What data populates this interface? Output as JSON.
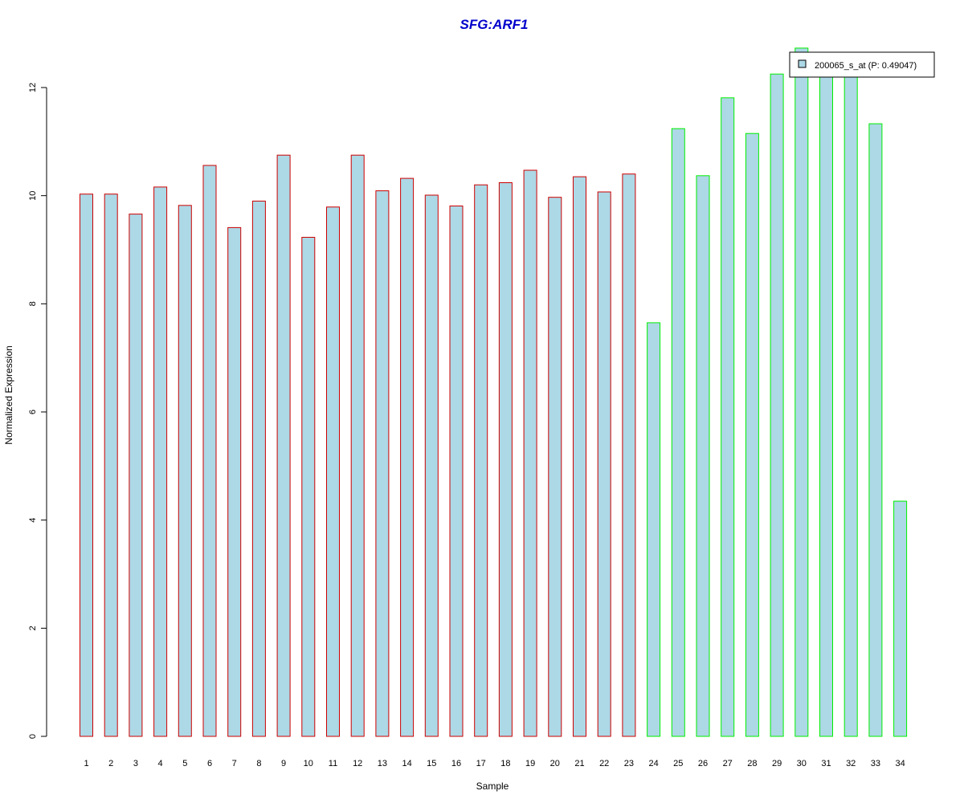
{
  "chart_data": {
    "type": "bar",
    "title": "SFG:ARF1",
    "xlabel": "Sample",
    "ylabel": "Normalized Expression",
    "categories": [
      "1",
      "2",
      "3",
      "4",
      "5",
      "6",
      "7",
      "8",
      "9",
      "10",
      "11",
      "12",
      "13",
      "14",
      "15",
      "16",
      "17",
      "18",
      "19",
      "20",
      "21",
      "22",
      "23",
      "24",
      "25",
      "26",
      "27",
      "28",
      "29",
      "30",
      "31",
      "32",
      "33",
      "34"
    ],
    "series": [
      {
        "name": "200065_s_at (P: 0.49047)",
        "values": [
          10.03,
          10.03,
          9.66,
          10.16,
          9.82,
          10.56,
          9.41,
          9.9,
          10.75,
          9.23,
          9.79,
          10.75,
          10.09,
          10.32,
          10.01,
          9.81,
          10.2,
          10.24,
          10.47,
          9.97,
          10.35,
          10.07,
          10.4,
          7.65,
          11.24,
          10.37,
          11.81,
          11.15,
          12.25,
          12.73,
          12.5,
          12.38,
          11.33,
          4.35
        ]
      }
    ],
    "groups": [
      {
        "samples": [
          1,
          23
        ],
        "border_color": "#cc0000"
      },
      {
        "samples": [
          24,
          34
        ],
        "border_color": "#00ee00"
      }
    ],
    "ylim": [
      0,
      12.8
    ],
    "yticks": [
      0,
      2,
      4,
      6,
      8,
      10,
      12
    ],
    "grid": false,
    "legend_position": "top-right",
    "colors": {
      "bar_fill": "#add8e6",
      "title": "#0000cc",
      "axis": "#000000"
    }
  }
}
